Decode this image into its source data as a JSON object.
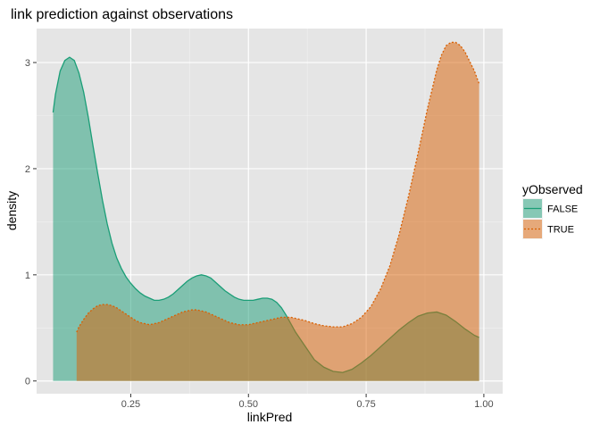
{
  "chart_data": {
    "type": "area",
    "title": "link prediction against observations",
    "xlabel": "linkPred",
    "ylabel": "density",
    "xlim": [
      0.05,
      1.04
    ],
    "ylim": [
      -0.12,
      3.32
    ],
    "x_ticks": [
      0.25,
      0.5,
      0.75,
      1.0
    ],
    "x_tick_labels": [
      "0.25",
      "0.50",
      "0.75",
      "1.00"
    ],
    "y_ticks": [
      0,
      1,
      2,
      3
    ],
    "y_tick_labels": [
      "0",
      "1",
      "2",
      "3"
    ],
    "grid": true,
    "legend": {
      "title": "yObserved",
      "position": "right"
    },
    "series": [
      {
        "name": "FALSE",
        "color": "#1b9e77",
        "line_style": "solid",
        "x": [
          0.085,
          0.09,
          0.1,
          0.11,
          0.12,
          0.13,
          0.14,
          0.15,
          0.16,
          0.17,
          0.18,
          0.19,
          0.2,
          0.21,
          0.22,
          0.23,
          0.24,
          0.25,
          0.26,
          0.27,
          0.28,
          0.29,
          0.3,
          0.31,
          0.32,
          0.33,
          0.34,
          0.35,
          0.36,
          0.37,
          0.38,
          0.39,
          0.4,
          0.41,
          0.42,
          0.43,
          0.44,
          0.45,
          0.46,
          0.47,
          0.48,
          0.49,
          0.5,
          0.51,
          0.52,
          0.53,
          0.54,
          0.55,
          0.56,
          0.57,
          0.58,
          0.59,
          0.6,
          0.62,
          0.64,
          0.66,
          0.68,
          0.7,
          0.72,
          0.74,
          0.76,
          0.78,
          0.8,
          0.82,
          0.84,
          0.86,
          0.88,
          0.9,
          0.92,
          0.94,
          0.96,
          0.98,
          0.99
        ],
        "y": [
          2.53,
          2.7,
          2.92,
          3.02,
          3.05,
          3.02,
          2.9,
          2.72,
          2.48,
          2.21,
          1.95,
          1.7,
          1.48,
          1.3,
          1.16,
          1.06,
          0.98,
          0.92,
          0.87,
          0.83,
          0.8,
          0.78,
          0.76,
          0.76,
          0.77,
          0.79,
          0.82,
          0.86,
          0.9,
          0.94,
          0.97,
          0.99,
          1.0,
          0.99,
          0.97,
          0.93,
          0.89,
          0.85,
          0.82,
          0.79,
          0.77,
          0.76,
          0.76,
          0.76,
          0.77,
          0.78,
          0.78,
          0.77,
          0.74,
          0.69,
          0.62,
          0.54,
          0.46,
          0.33,
          0.2,
          0.13,
          0.09,
          0.08,
          0.11,
          0.17,
          0.24,
          0.32,
          0.4,
          0.48,
          0.55,
          0.61,
          0.64,
          0.65,
          0.62,
          0.56,
          0.49,
          0.43,
          0.41
        ]
      },
      {
        "name": "TRUE",
        "color": "#d95f02",
        "line_style": "dotted",
        "x": [
          0.135,
          0.14,
          0.15,
          0.16,
          0.17,
          0.18,
          0.19,
          0.2,
          0.21,
          0.22,
          0.23,
          0.24,
          0.25,
          0.26,
          0.27,
          0.28,
          0.29,
          0.3,
          0.31,
          0.32,
          0.33,
          0.34,
          0.35,
          0.36,
          0.37,
          0.38,
          0.39,
          0.4,
          0.41,
          0.42,
          0.43,
          0.44,
          0.45,
          0.46,
          0.47,
          0.48,
          0.49,
          0.5,
          0.51,
          0.52,
          0.53,
          0.54,
          0.55,
          0.56,
          0.57,
          0.58,
          0.59,
          0.6,
          0.62,
          0.64,
          0.66,
          0.68,
          0.7,
          0.72,
          0.74,
          0.76,
          0.78,
          0.8,
          0.82,
          0.84,
          0.86,
          0.88,
          0.9,
          0.91,
          0.92,
          0.93,
          0.94,
          0.95,
          0.96,
          0.97,
          0.98,
          0.99
        ],
        "y": [
          0.46,
          0.51,
          0.58,
          0.64,
          0.68,
          0.71,
          0.72,
          0.72,
          0.71,
          0.69,
          0.66,
          0.63,
          0.6,
          0.57,
          0.55,
          0.54,
          0.53,
          0.54,
          0.55,
          0.57,
          0.59,
          0.61,
          0.63,
          0.65,
          0.66,
          0.67,
          0.67,
          0.66,
          0.65,
          0.63,
          0.61,
          0.59,
          0.57,
          0.55,
          0.54,
          0.53,
          0.53,
          0.53,
          0.54,
          0.55,
          0.56,
          0.57,
          0.58,
          0.59,
          0.6,
          0.6,
          0.6,
          0.59,
          0.57,
          0.54,
          0.52,
          0.51,
          0.51,
          0.54,
          0.6,
          0.7,
          0.86,
          1.08,
          1.38,
          1.74,
          2.14,
          2.56,
          2.93,
          3.07,
          3.16,
          3.19,
          3.19,
          3.16,
          3.1,
          3.01,
          2.92,
          2.8
        ]
      }
    ]
  }
}
